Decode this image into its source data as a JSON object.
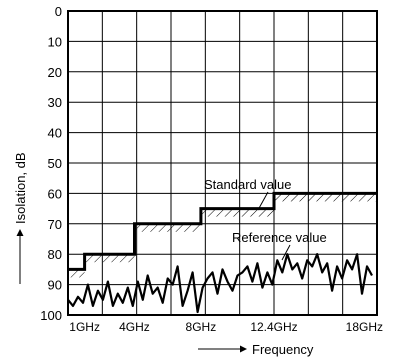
{
  "chart_data": {
    "type": "line",
    "title": "",
    "xlabel": "Frequency",
    "ylabel": "Isolation, dB",
    "ylim": [
      0,
      100
    ],
    "y_inverted": true,
    "y_ticks": [
      "0",
      "10",
      "20",
      "30",
      "40",
      "50",
      "60",
      "70",
      "80",
      "90",
      "100"
    ],
    "x_ticks": [
      {
        "label": "1GHz",
        "value": 1
      },
      {
        "label": "4GHz",
        "value": 4
      },
      {
        "label": "8GHz",
        "value": 8
      },
      {
        "label": "12.4GHz",
        "value": 12.4
      },
      {
        "label": "18GHz",
        "value": 18
      }
    ],
    "xlim": [
      0,
      18.6
    ],
    "grid": true,
    "series": [
      {
        "name": "Standard value",
        "style": "step",
        "hatched": true,
        "x": [
          0,
          1,
          1,
          4,
          4,
          8,
          8,
          12.4,
          12.4,
          18.6
        ],
        "y": [
          85,
          85,
          80,
          80,
          70,
          70,
          65,
          65,
          60,
          60
        ]
      },
      {
        "name": "Reference value",
        "style": "line",
        "x": [
          0,
          0.3,
          0.6,
          0.9,
          1.2,
          1.5,
          1.8,
          2.1,
          2.4,
          2.7,
          3.0,
          3.3,
          3.6,
          3.9,
          4.2,
          4.5,
          4.8,
          5.1,
          5.4,
          5.7,
          6.0,
          6.3,
          6.6,
          6.9,
          7.2,
          7.5,
          7.8,
          8.1,
          8.4,
          8.7,
          9.0,
          9.3,
          9.6,
          9.9,
          10.2,
          10.5,
          10.8,
          11.1,
          11.4,
          11.7,
          12.0,
          12.3,
          12.6,
          12.9,
          13.2,
          13.5,
          13.8,
          14.1,
          14.4,
          14.7,
          15.0,
          15.3,
          15.6,
          15.9,
          16.2,
          16.5,
          16.8,
          17.1,
          17.4,
          17.7,
          18.0,
          18.3
        ],
        "y": [
          95,
          97,
          94,
          96,
          90,
          97,
          92,
          95,
          89,
          97,
          93,
          96,
          91,
          97,
          89,
          95,
          87,
          93,
          91,
          96,
          88,
          90,
          84,
          97,
          92,
          86,
          99,
          91,
          88,
          86,
          93,
          85,
          89,
          92,
          87,
          86,
          84,
          89,
          83,
          91,
          86,
          90,
          82,
          86,
          80,
          85,
          83,
          88,
          82,
          84,
          80,
          86,
          83,
          92,
          84,
          88,
          82,
          85,
          80,
          93,
          84,
          87
        ]
      }
    ],
    "annotations": [
      "Standard value",
      "Reference value"
    ]
  }
}
